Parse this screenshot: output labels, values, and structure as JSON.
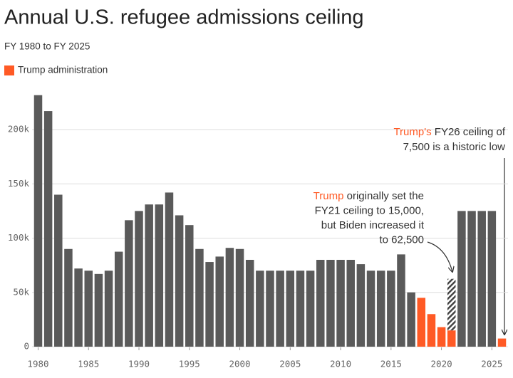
{
  "chart_data": {
    "type": "bar",
    "title": "Annual U.S. refugee admissions ceiling",
    "subtitle": "FY 1980 to FY 2025",
    "x": [
      1980,
      1981,
      1982,
      1983,
      1984,
      1985,
      1986,
      1987,
      1988,
      1989,
      1990,
      1991,
      1992,
      1993,
      1994,
      1995,
      1996,
      1997,
      1998,
      1999,
      2000,
      2001,
      2002,
      2003,
      2004,
      2005,
      2006,
      2007,
      2008,
      2009,
      2010,
      2011,
      2012,
      2013,
      2014,
      2015,
      2016,
      2017,
      2018,
      2019,
      2020,
      2021,
      2022,
      2023,
      2024,
      2025,
      2026
    ],
    "values": [
      231700,
      217000,
      140000,
      90000,
      72000,
      70000,
      67000,
      70000,
      87500,
      116500,
      125000,
      131000,
      131000,
      142000,
      121000,
      112000,
      90000,
      78000,
      83000,
      91000,
      90000,
      80000,
      70000,
      70000,
      70000,
      70000,
      70000,
      70000,
      80000,
      80000,
      80000,
      80000,
      76000,
      70000,
      70000,
      70000,
      85000,
      50000,
      45000,
      30000,
      18000,
      15000,
      125000,
      125000,
      125000,
      125000,
      7500
    ],
    "color": "#5a5a5a",
    "highlight_color": "#ff5a25",
    "highlighted": [
      2018,
      2019,
      2020,
      2021,
      2026
    ],
    "legend_label": "Trump administration",
    "revised": {
      "x": 2021,
      "value": 62500
    },
    "xlim": [
      1979.4,
      2026.6
    ],
    "xticks": [
      1980,
      1985,
      1990,
      1995,
      2000,
      2005,
      2010,
      2015,
      2020,
      2025
    ],
    "ylim": [
      0,
      240000
    ],
    "yticks": [
      0,
      {
        "value": 50000,
        "label": "50k"
      },
      {
        "value": 100000,
        "label": "100k"
      },
      {
        "value": 150000,
        "label": "150k"
      },
      {
        "value": 200000,
        "label": "200k"
      }
    ],
    "grid": true,
    "annotations": [
      {
        "lines": [
          [
            {
              "text": "Trump's",
              "highlight": true
            },
            {
              "text": " FY26 ceiling of"
            }
          ],
          [
            {
              "text": "7,500 is a historic low"
            }
          ]
        ]
      },
      {
        "lines": [
          [
            {
              "text": "Trump",
              "highlight": true
            },
            {
              "text": " originally set the"
            }
          ],
          [
            {
              "text": "FY21 ceiling to 15,000,"
            }
          ],
          [
            {
              "text": "but Biden increased it"
            }
          ],
          [
            {
              "text": "to 62,500"
            }
          ]
        ]
      }
    ]
  }
}
